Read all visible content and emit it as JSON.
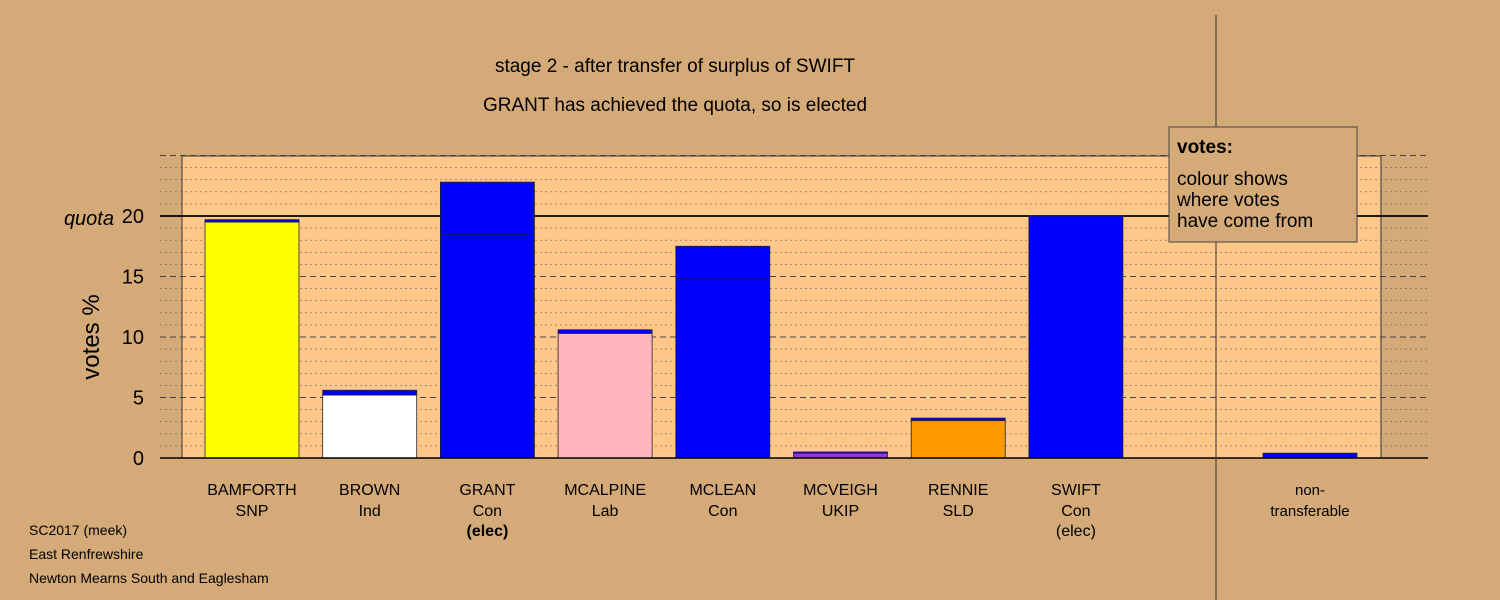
{
  "footer": {
    "line1": "SC2017 (meek)",
    "line2": "East Renfrewshire",
    "line3": "Newton Mearns South and Eaglesham"
  },
  "chart_data": {
    "type": "bar",
    "title": "stage 2 - after transfer of surplus of SWIFT",
    "subtitle": "GRANT has achieved the quota, so is elected",
    "ylabel": "votes %",
    "quota_label": "quota",
    "quota": 20,
    "ylim": [
      0,
      25
    ],
    "yticks": [
      0,
      5,
      10,
      15,
      20
    ],
    "grid": true,
    "legend": {
      "title": "votes:",
      "lines": [
        "colour shows",
        "where votes",
        "have come from"
      ],
      "placement": "top-right"
    },
    "colors": {
      "background": "#d4aa78",
      "plot": "#ffc88a",
      "con": "#0000ff",
      "snp": "#ffff00",
      "ind": "#ffffff",
      "lab": "#ffb6c1",
      "ukip": "#9933cc",
      "sld": "#ff9900"
    },
    "candidates": [
      {
        "name": "BAMFORTH",
        "party": "SNP",
        "status": "",
        "color": "#ffff00",
        "base": 19.5,
        "transfer": 0.2
      },
      {
        "name": "BROWN",
        "party": "Ind",
        "status": "",
        "color": "#ffffff",
        "base": 5.2,
        "transfer": 0.4
      },
      {
        "name": "GRANT",
        "party": "Con",
        "status": "(elec)",
        "color": "#0000ff",
        "base": 18.5,
        "transfer": 4.3
      },
      {
        "name": "MCALPINE",
        "party": "Lab",
        "status": "",
        "color": "#ffb6c1",
        "base": 10.3,
        "transfer": 0.3
      },
      {
        "name": "MCLEAN",
        "party": "Con",
        "status": "",
        "color": "#0000ff",
        "base": 14.8,
        "transfer": 2.7
      },
      {
        "name": "MCVEIGH",
        "party": "UKIP",
        "status": "",
        "color": "#9933cc",
        "base": 0.4,
        "transfer": 0.1
      },
      {
        "name": "RENNIE",
        "party": "SLD",
        "status": "",
        "color": "#ff9900",
        "base": 3.1,
        "transfer": 0.2
      },
      {
        "name": "SWIFT",
        "party": "Con",
        "status": "(elec)",
        "color": "#0000ff",
        "base": 20.0,
        "transfer": 0
      }
    ],
    "nontransferable": {
      "line1": "non-",
      "line2": "transferable",
      "value": 0.4,
      "color": "#0000ff"
    }
  }
}
